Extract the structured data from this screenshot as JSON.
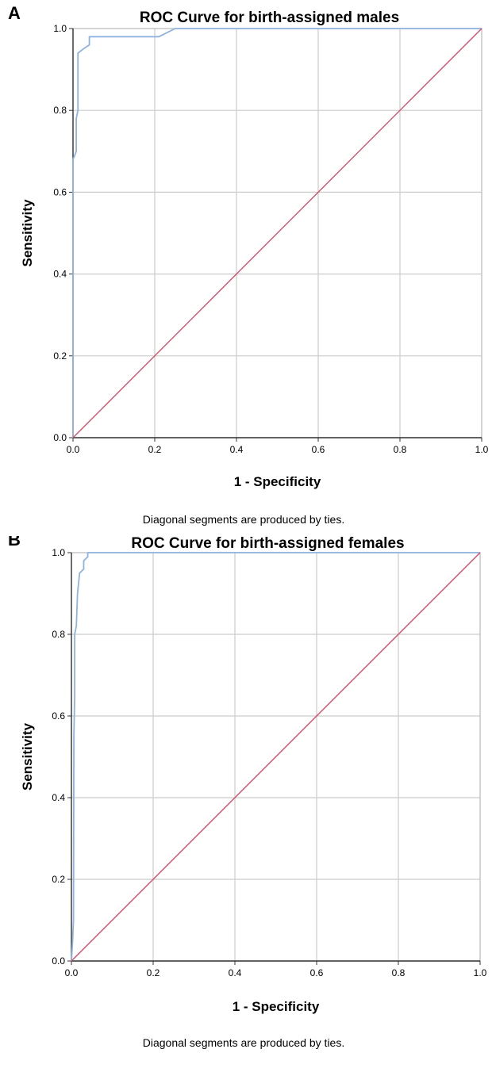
{
  "chart_data": [
    {
      "type": "line",
      "panel_label": "A",
      "title": "ROC Curve for birth-assigned males",
      "xlabel": "1 - Specificity",
      "ylabel": "Sensitivity",
      "xlim": [
        0,
        1
      ],
      "ylim": [
        0,
        1
      ],
      "x_ticks": [
        "0.0",
        "0.2",
        "0.4",
        "0.6",
        "0.8",
        "1.0"
      ],
      "y_ticks": [
        "0.0",
        "0.2",
        "0.4",
        "0.6",
        "0.8",
        "1.0"
      ],
      "grid": true,
      "footnote": "Diagonal segments are produced by ties.",
      "series": [
        {
          "color": "#8fb3e0",
          "x": [
            0.0,
            0.0,
            0.004,
            0.008,
            0.008,
            0.012,
            0.012,
            0.025,
            0.04,
            0.04,
            0.21,
            0.23,
            0.25,
            0.25,
            1.0
          ],
          "y": [
            0.0,
            0.68,
            0.69,
            0.7,
            0.78,
            0.8,
            0.94,
            0.95,
            0.96,
            0.98,
            0.98,
            0.99,
            1.0,
            1.0,
            1.0
          ]
        },
        {
          "color": "#d0506a",
          "x": [
            0,
            1
          ],
          "y": [
            0,
            1
          ]
        }
      ]
    },
    {
      "type": "line",
      "panel_label": "B",
      "title": "ROC Curve for birth-assigned females",
      "xlabel": "1 - Specificity",
      "ylabel": "Sensitivity",
      "xlim": [
        0,
        1
      ],
      "ylim": [
        0,
        1
      ],
      "x_ticks": [
        "0.0",
        "0.2",
        "0.4",
        "0.6",
        "0.8",
        "1.0"
      ],
      "y_ticks": [
        "0.0",
        "0.2",
        "0.4",
        "0.6",
        "0.8",
        "1.0"
      ],
      "grid": true,
      "footnote": "Diagonal segments are produced by ties.",
      "series": [
        {
          "color": "#8fb3e0",
          "x": [
            0.0,
            0.003,
            0.005,
            0.006,
            0.008,
            0.008,
            0.012,
            0.015,
            0.02,
            0.03,
            0.03,
            0.04,
            0.04,
            0.045,
            1.0
          ],
          "y": [
            0.0,
            0.05,
            0.1,
            0.55,
            0.65,
            0.8,
            0.82,
            0.9,
            0.95,
            0.96,
            0.98,
            0.99,
            1.0,
            1.0,
            1.0
          ]
        },
        {
          "color": "#d0506a",
          "x": [
            0,
            1
          ],
          "y": [
            0,
            1
          ]
        }
      ]
    }
  ]
}
